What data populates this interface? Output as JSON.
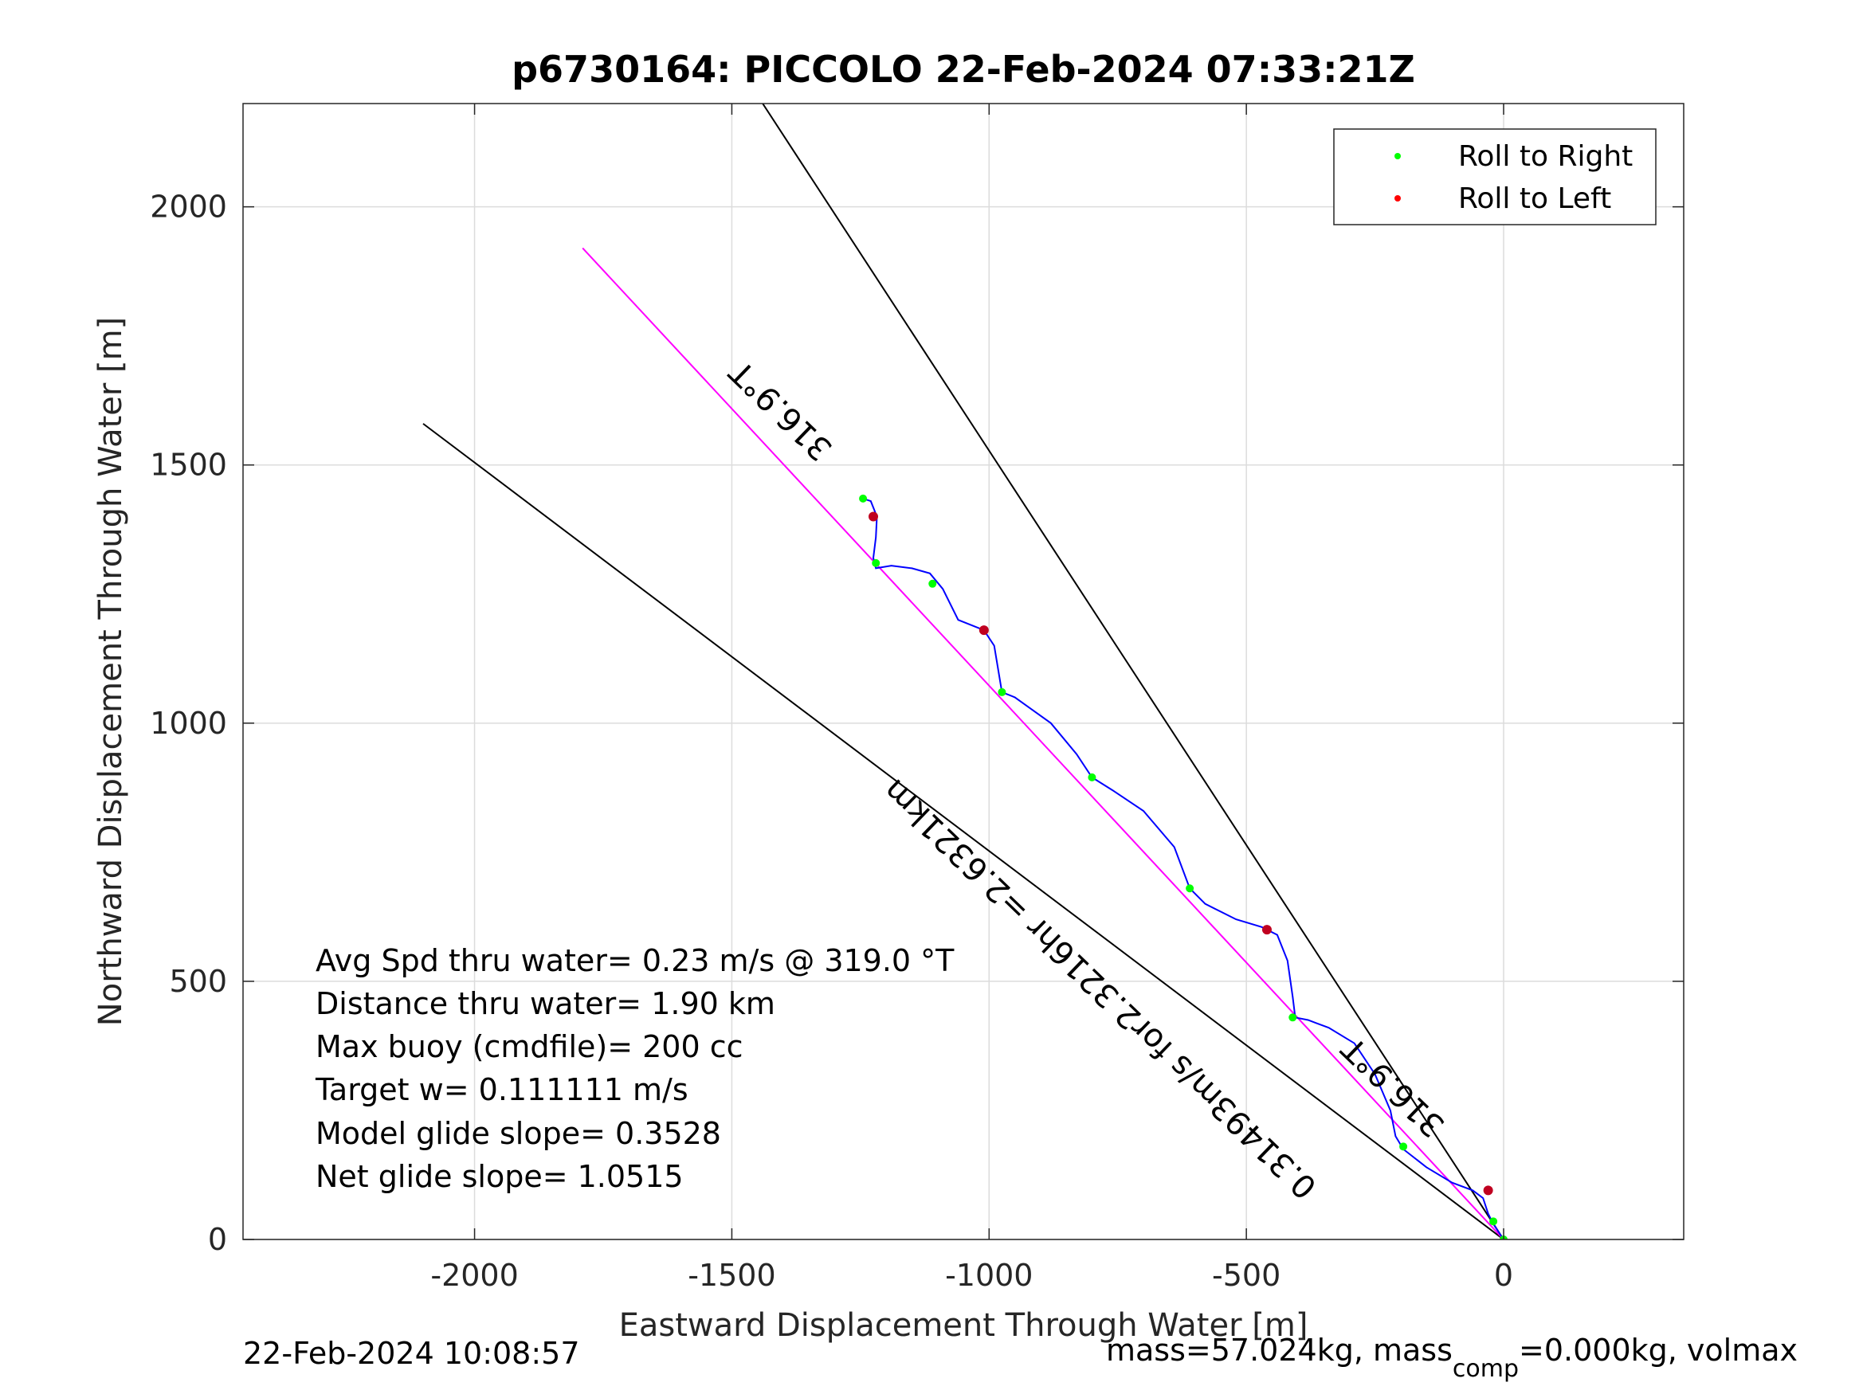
{
  "chart_data": {
    "type": "scatter",
    "title": "p6730164: PICCOLO 22-Feb-2024 07:33:21Z",
    "xlabel": "Eastward Displacement Through Water [m]",
    "ylabel": "Northward Displacement Through Water [m]",
    "xlim": [
      -2450,
      350
    ],
    "ylim": [
      0,
      2200
    ],
    "xticks": [
      -2000,
      -1500,
      -1000,
      -500,
      0
    ],
    "xtick_labels": [
      "-2000",
      "-1500",
      "-1000",
      "-500",
      "0"
    ],
    "yticks": [
      0,
      500,
      1000,
      1500,
      2000
    ],
    "ytick_labels": [
      "0",
      "500",
      "1000",
      "1500",
      "2000"
    ],
    "grid": true,
    "legend_position": "top-right",
    "legend": [
      {
        "label": "Roll to Right",
        "color": "#00ff00"
      },
      {
        "label": "Roll to Left",
        "color": "#ff0000"
      }
    ],
    "track": {
      "color": "#0000ff",
      "points": [
        [
          0,
          0
        ],
        [
          -20,
          30
        ],
        [
          -30,
          50
        ],
        [
          -40,
          80
        ],
        [
          -60,
          95
        ],
        [
          -100,
          110
        ],
        [
          -150,
          140
        ],
        [
          -195,
          175
        ],
        [
          -210,
          200
        ],
        [
          -220,
          250
        ],
        [
          -250,
          320
        ],
        [
          -290,
          380
        ],
        [
          -340,
          410
        ],
        [
          -380,
          425
        ],
        [
          -405,
          430
        ],
        [
          -410,
          470
        ],
        [
          -420,
          540
        ],
        [
          -440,
          590
        ],
        [
          -470,
          605
        ],
        [
          -520,
          620
        ],
        [
          -580,
          650
        ],
        [
          -610,
          680
        ],
        [
          -640,
          760
        ],
        [
          -700,
          830
        ],
        [
          -760,
          870
        ],
        [
          -800,
          895
        ],
        [
          -830,
          940
        ],
        [
          -880,
          1000
        ],
        [
          -950,
          1050
        ],
        [
          -975,
          1060
        ],
        [
          -990,
          1150
        ],
        [
          -1010,
          1180
        ],
        [
          -1060,
          1200
        ],
        [
          -1090,
          1260
        ],
        [
          -1115,
          1290
        ],
        [
          -1150,
          1300
        ],
        [
          -1190,
          1305
        ],
        [
          -1220,
          1300
        ],
        [
          -1225,
          1320
        ],
        [
          -1220,
          1360
        ],
        [
          -1218,
          1400
        ],
        [
          -1230,
          1430
        ],
        [
          -1245,
          1435
        ]
      ]
    },
    "roll_right_points": [
      [
        0,
        0
      ],
      [
        -20,
        35
      ],
      [
        -195,
        180
      ],
      [
        -410,
        430
      ],
      [
        -610,
        680
      ],
      [
        -800,
        895
      ],
      [
        -975,
        1060
      ],
      [
        -1110,
        1270
      ],
      [
        -1220,
        1310
      ],
      [
        -1245,
        1435
      ]
    ],
    "roll_left_points": [
      [
        -30,
        95
      ],
      [
        -460,
        600
      ],
      [
        -1010,
        1180
      ],
      [
        -1225,
        1400
      ]
    ],
    "heading_line": {
      "color": "#ff00ff",
      "from": [
        0,
        0
      ],
      "to": [
        -1790,
        1920
      ]
    },
    "cone_lines": [
      {
        "from": [
          0,
          0
        ],
        "to": [
          -1440,
          2200
        ]
      },
      {
        "from": [
          0,
          0
        ],
        "to": [
          -2100,
          1580
        ]
      }
    ],
    "annotations": [
      {
        "text": "316.9°T",
        "x": -1390,
        "y": 1620,
        "rotation": 44
      },
      {
        "text": "0.31493m/s for2.3216hr =2.6321km",
        "x": -770,
        "y": 500,
        "rotation": 44
      },
      {
        "text": "316.9°T",
        "x": -200,
        "y": 310,
        "rotation": 44
      }
    ],
    "stats": [
      "Avg Spd thru water=  0.23 m/s @ 319.0 °T",
      "Distance thru water=  1.90 km",
      "Max buoy (cmdfile)= 200 cc",
      "Target w= 0.111111 m/s",
      "Model glide slope= 0.3528",
      "Net glide slope= 1.0515"
    ],
    "footer_left": "22-Feb-2024 10:08:57",
    "footer_right": {
      "prefix": "mass=57.024kg, mass",
      "subscript": "comp",
      "suffix": "=0.000kg, volmax"
    }
  }
}
